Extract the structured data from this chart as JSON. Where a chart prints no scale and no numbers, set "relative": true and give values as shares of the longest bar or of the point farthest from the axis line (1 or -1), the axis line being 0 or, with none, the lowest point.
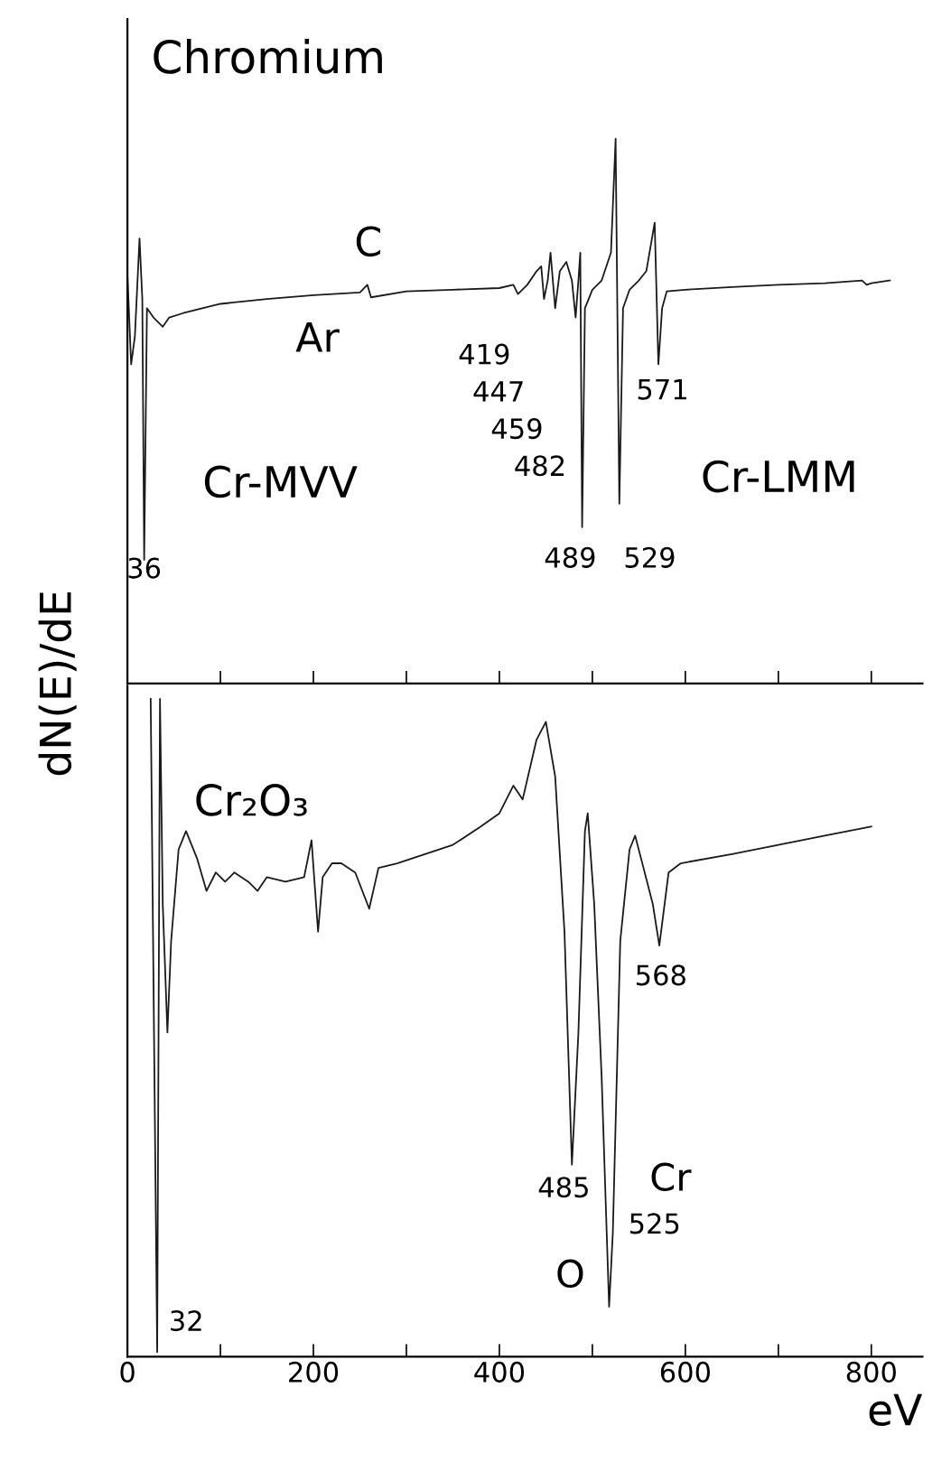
{
  "chart_data": [
    {
      "type": "line",
      "title": "Chromium",
      "ylabel": "dN(E)/dE",
      "relative": true,
      "xlim": [
        0,
        855
      ],
      "xticks": [
        0,
        {
          "value": 100,
          "label": null
        },
        200,
        {
          "value": 300,
          "label": null
        },
        400,
        {
          "value": 500,
          "label": null
        },
        600,
        {
          "value": 700,
          "label": null
        },
        800
      ],
      "tick_labels": false,
      "line_style": "solid",
      "series": [
        {
          "color": "#1a1a1a",
          "x": [
            0,
            4,
            8,
            13,
            16,
            18,
            21,
            28,
            38,
            45,
            60,
            100,
            150,
            200,
            250,
            258,
            262,
            300,
            350,
            400,
            415,
            420,
            430,
            440,
            445,
            448,
            452,
            455,
            460,
            465,
            472,
            478,
            482,
            485,
            487,
            489,
            492,
            500,
            510,
            520,
            525,
            529,
            533,
            540,
            550,
            558,
            567,
            571,
            575,
            580,
            600,
            650,
            700,
            750,
            790,
            795,
            800,
            820
          ],
          "values": [
            0.749,
            0.586,
            0.637,
            0.817,
            0.706,
            0.227,
            0.689,
            0.672,
            0.655,
            0.672,
            0.68,
            0.697,
            0.706,
            0.713,
            0.718,
            0.732,
            0.709,
            0.72,
            0.723,
            0.726,
            0.732,
            0.715,
            0.732,
            0.757,
            0.766,
            0.706,
            0.74,
            0.791,
            0.689,
            0.757,
            0.774,
            0.74,
            0.672,
            0.74,
            0.791,
            0.287,
            0.689,
            0.723,
            0.74,
            0.791,
            1.0,
            0.33,
            0.689,
            0.723,
            0.74,
            0.757,
            0.846,
            0.586,
            0.689,
            0.72,
            0.723,
            0.728,
            0.732,
            0.735,
            0.74,
            0.732,
            0.735,
            0.74
          ]
        }
      ],
      "annotations": [
        "C",
        "Ar",
        "Cr-MVV",
        "36",
        "419",
        "447",
        "459",
        "482",
        "489",
        "529",
        "571",
        "Cr-LMM"
      ]
    },
    {
      "type": "line",
      "xlabel": "eV",
      "relative": true,
      "xlim": [
        0,
        855
      ],
      "xticks": [
        0,
        {
          "value": 100,
          "label": null
        },
        200,
        {
          "value": 300,
          "label": null
        },
        400,
        {
          "value": 500,
          "label": null
        },
        600,
        {
          "value": 700,
          "label": null
        },
        800
      ],
      "tick_labels": "x",
      "line_style": "solid",
      "series": [
        {
          "color": "#1a1a1a",
          "x": [
            25,
            32,
            35,
            38,
            43,
            47,
            55,
            63,
            75,
            85,
            95,
            105,
            115,
            130,
            140,
            150,
            170,
            190,
            198,
            205,
            210,
            220,
            230,
            245,
            260,
            270,
            290,
            320,
            350,
            380,
            400,
            415,
            425,
            440,
            450,
            460,
            470,
            478,
            485,
            492,
            495,
            502,
            510,
            518,
            522,
            530,
            540,
            546,
            555,
            565,
            572,
            582,
            595,
            650,
            700,
            750,
            800
          ],
          "values": [
            1.0,
            0.007,
            1.0,
            0.688,
            0.493,
            0.632,
            0.771,
            0.799,
            0.757,
            0.708,
            0.736,
            0.722,
            0.736,
            0.722,
            0.708,
            0.729,
            0.722,
            0.729,
            0.785,
            0.646,
            0.729,
            0.75,
            0.75,
            0.736,
            0.681,
            0.743,
            0.75,
            0.764,
            0.778,
            0.806,
            0.826,
            0.868,
            0.847,
            0.938,
            0.965,
            0.882,
            0.646,
            0.292,
            0.493,
            0.799,
            0.826,
            0.688,
            0.424,
            0.076,
            0.188,
            0.632,
            0.771,
            0.792,
            0.743,
            0.688,
            0.625,
            0.736,
            0.75,
            0.764,
            0.778,
            0.792,
            0.806
          ]
        }
      ],
      "annotations": [
        "Cr₂O₃",
        "32",
        "485",
        "525",
        "568",
        "Cr",
        "O"
      ]
    }
  ]
}
